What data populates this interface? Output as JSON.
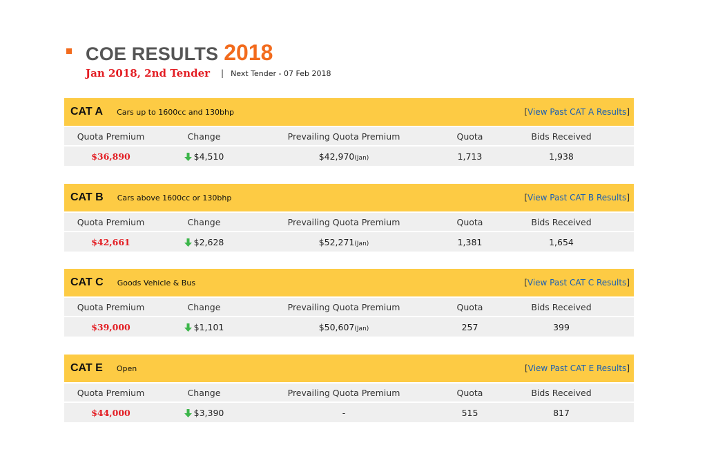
{
  "header": {
    "title": "COE RESULTS",
    "year": "2018",
    "tender": "Jan 2018, 2nd Tender",
    "separator": "|",
    "next_tender": "Next Tender - 07 Feb 2018"
  },
  "column_labels": {
    "quota_premium": "Quota Premium",
    "change": "Change",
    "prevailing": "Prevailing Quota Premium",
    "quota": "Quota",
    "bids": "Bids Received"
  },
  "categories": [
    {
      "name": "CAT A",
      "description": "Cars up to 1600cc and 130bhp",
      "link_text": "View Past CAT A Results",
      "quota_premium": "$36,890",
      "change": "$4,510",
      "change_direction": "down",
      "prevailing": "$42,970",
      "prevailing_suffix": "(Jan)",
      "quota": "1,713",
      "bids": "1,938"
    },
    {
      "name": "CAT B",
      "description": "Cars above 1600cc or 130bhp",
      "link_text": "View Past CAT B Results",
      "quota_premium": "$42,661",
      "change": "$2,628",
      "change_direction": "down",
      "prevailing": "$52,271",
      "prevailing_suffix": "(Jan)",
      "quota": "1,381",
      "bids": "1,654"
    },
    {
      "name": "CAT C",
      "description": "Goods Vehicle & Bus",
      "link_text": "View Past CAT C Results",
      "quota_premium": "$39,000",
      "change": "$1,101",
      "change_direction": "down",
      "prevailing": "$50,607",
      "prevailing_suffix": "(Jan)",
      "quota": "257",
      "bids": "399"
    },
    {
      "name": "CAT E",
      "description": "Open",
      "link_text": "View Past CAT E Results",
      "quota_premium": "$44,000",
      "change": "$3,390",
      "change_direction": "down",
      "prevailing": "-",
      "prevailing_suffix": "",
      "quota": "515",
      "bids": "817"
    }
  ],
  "colors": {
    "accent_orange": "#f26b1d",
    "header_yellow": "#fdcb44",
    "premium_red": "#e31e24",
    "row_gray": "#efefef",
    "arrow_green": "#3cb64a"
  },
  "icons": {
    "change": "arrow-down-icon",
    "bullet": "square-bullet-icon"
  }
}
